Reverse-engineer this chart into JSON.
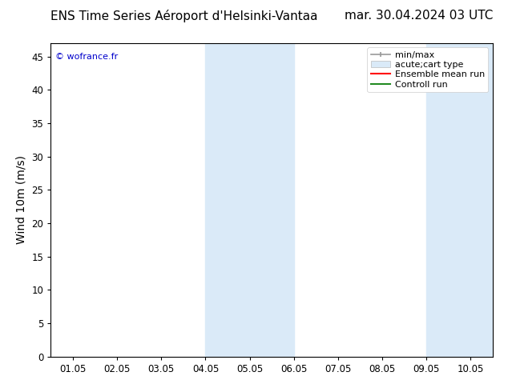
{
  "title_left": "ENS Time Series Aéroport d'Helsinki-Vantaa",
  "title_right": "mar. 30.04.2024 03 UTC",
  "ylabel": "Wind 10m (m/s)",
  "watermark": "© wofrance.fr",
  "xlim_labels": [
    "01.05",
    "02.05",
    "03.05",
    "04.05",
    "05.05",
    "06.05",
    "07.05",
    "08.05",
    "09.05",
    "10.05"
  ],
  "ylim": [
    0,
    47
  ],
  "yticks": [
    0,
    5,
    10,
    15,
    20,
    25,
    30,
    35,
    40,
    45
  ],
  "shaded_regions": [
    {
      "xstart": 3.5,
      "xend": 5.5,
      "color": "#daeaf8"
    },
    {
      "xstart": 8.5,
      "xend": 10.0,
      "color": "#daeaf8"
    }
  ],
  "background_color": "#ffffff",
  "plot_bg_color": "#ffffff",
  "spine_color": "#000000",
  "tick_color": "#000000",
  "title_fontsize": 11,
  "label_fontsize": 10,
  "tick_fontsize": 8.5,
  "watermark_color": "#0000cc",
  "watermark_fontsize": 8,
  "legend_fontsize": 8
}
